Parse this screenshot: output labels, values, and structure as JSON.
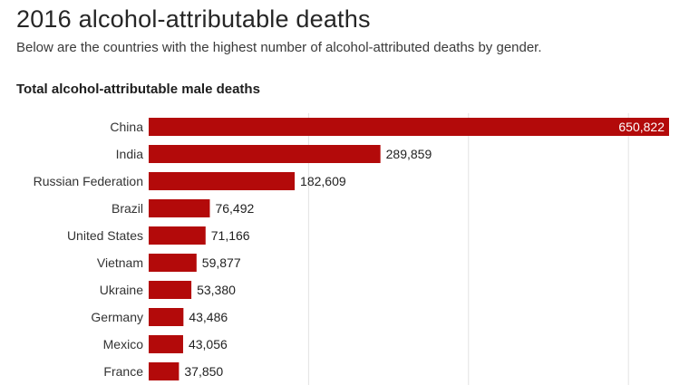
{
  "header": {
    "title": "2016 alcohol-attributable deaths",
    "subtitle": "Below are the countries with the highest number of alcohol-attributed deaths by gender."
  },
  "chart_data": {
    "type": "bar",
    "orientation": "horizontal",
    "title": "Total alcohol-attributable male deaths",
    "categories": [
      "China",
      "India",
      "Russian Federation",
      "Brazil",
      "United States",
      "Vietnam",
      "Ukraine",
      "Germany",
      "Mexico",
      "France"
    ],
    "values": [
      650822,
      289859,
      182609,
      76492,
      71166,
      59877,
      53380,
      43486,
      43056,
      37850
    ],
    "value_labels": [
      "650,822",
      "289,859",
      "182,609",
      "76,492",
      "71,166",
      "59,877",
      "53,380",
      "43,486",
      "43,056",
      "37,850"
    ],
    "xlim": [
      0,
      650822
    ],
    "gridlines": [
      200000,
      400000,
      600000
    ],
    "bar_color": "#b30a0a",
    "grid_color": "#e2e2e2",
    "xlabel": "",
    "ylabel": ""
  }
}
